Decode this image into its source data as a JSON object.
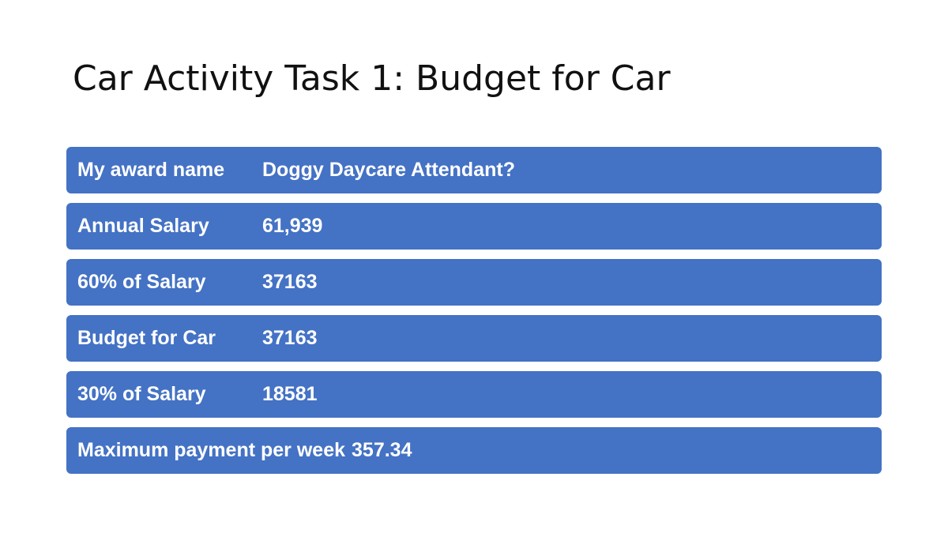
{
  "title": "Car Activity Task 1: Budget for Car",
  "table": {
    "rows": [
      {
        "label": "My award name",
        "value": "Doggy Daycare Attendant?"
      },
      {
        "label": "Annual Salary",
        "value": "61,939"
      },
      {
        "label": "60% of Salary",
        "value": "37163"
      },
      {
        "label": "Budget for Car",
        "value": "37163"
      },
      {
        "label": "30% of Salary",
        "value": "18581"
      },
      {
        "label": "Maximum payment per week",
        "value": "357.34"
      }
    ]
  },
  "colors": {
    "row_fill": "#4472c4",
    "row_text": "#ffffff",
    "title_text": "#111111"
  }
}
